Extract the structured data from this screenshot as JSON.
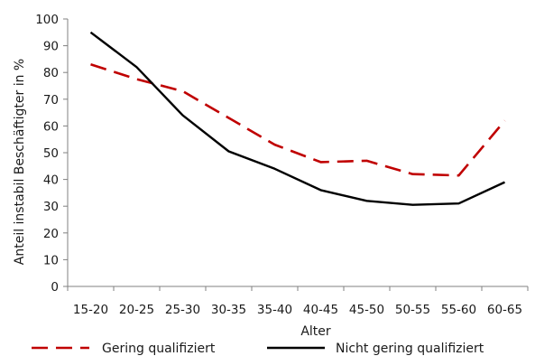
{
  "chart_data": {
    "type": "line",
    "title": "",
    "xlabel": "Alter",
    "ylabel": "Anteil instabil Beschäftigter in %",
    "ylim": [
      0,
      100
    ],
    "yticks": [
      "0",
      "10",
      "20",
      "30",
      "40",
      "50",
      "60",
      "70",
      "80",
      "90",
      "100"
    ],
    "grid": false,
    "legend_position": "bottom",
    "categories": [
      "15-20",
      "20-25",
      "25-30",
      "30-35",
      "35-40",
      "40-45",
      "45-50",
      "50-55",
      "55-60",
      "60-65"
    ],
    "series": [
      {
        "name": "Gering qualifiziert",
        "color": "#c00000",
        "style": "dashed",
        "values": [
          83,
          77.5,
          73,
          63,
          53,
          46.5,
          47,
          42,
          41.5,
          62
        ]
      },
      {
        "name": "Nicht gering qualifiziert",
        "color": "#000000",
        "style": "solid",
        "values": [
          95,
          82,
          64,
          50.5,
          44,
          36,
          32,
          30.5,
          31,
          39
        ]
      }
    ]
  }
}
